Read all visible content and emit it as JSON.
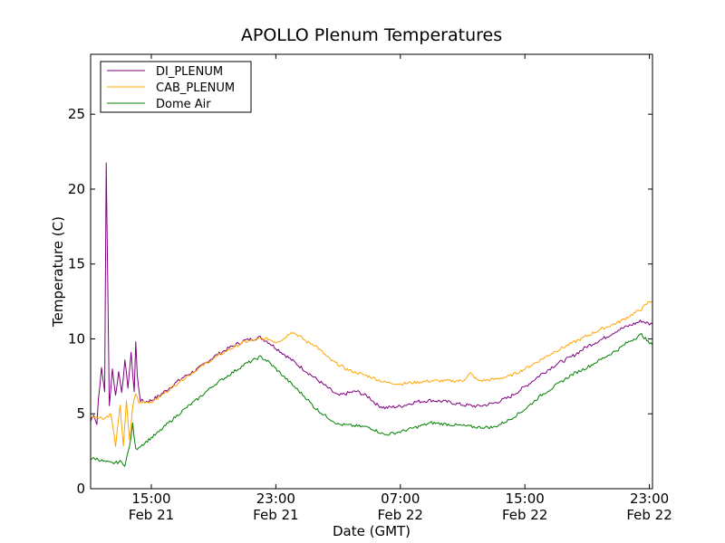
{
  "chart_data": {
    "type": "line",
    "title": "APOLLO Plenum Temperatures",
    "xlabel": "Date (GMT)",
    "ylabel": "Temperature (C)",
    "xlim": [
      11.1,
      47.2
    ],
    "ylim": [
      0,
      29
    ],
    "x_unit": "hours since Feb 21 00:00 GMT",
    "yticks": [
      0,
      5,
      10,
      15,
      20,
      25
    ],
    "xticks": [
      {
        "value": 15,
        "time": "15:00",
        "date": "Feb 21"
      },
      {
        "value": 23,
        "time": "23:00",
        "date": "Feb 21"
      },
      {
        "value": 31,
        "time": "07:00",
        "date": "Feb 22"
      },
      {
        "value": 39,
        "time": "15:00",
        "date": "Feb 22"
      },
      {
        "value": 47,
        "time": "23:00",
        "date": "Feb 22"
      }
    ],
    "legend": {
      "position": "top-left"
    },
    "series": [
      {
        "name": "DI_PLENUM",
        "color": "#800080",
        "noise": 0.12,
        "x": [
          11.1,
          11.3,
          11.5,
          11.6,
          11.8,
          12.0,
          12.1,
          12.3,
          12.5,
          12.7,
          12.9,
          13.1,
          13.3,
          13.5,
          13.7,
          13.9,
          14.0,
          14.1,
          14.3,
          14.6,
          15.0,
          15.5,
          16.0,
          17.0,
          18.0,
          19.0,
          20.0,
          21.0,
          22.0,
          22.5,
          23.0,
          23.5,
          24.0,
          25.0,
          26.0,
          27.0,
          27.7,
          28.2,
          29.0,
          29.5,
          30.0,
          31.0,
          32.0,
          33.0,
          34.0,
          35.0,
          36.0,
          37.0,
          38.0,
          39.0,
          40.0,
          41.0,
          42.0,
          43.0,
          44.0,
          45.0,
          46.0,
          46.5,
          47.0,
          47.2
        ],
        "y": [
          4.5,
          5.0,
          4.3,
          6.0,
          8.0,
          6.5,
          21.8,
          5.5,
          8.0,
          6.2,
          7.8,
          6.5,
          8.5,
          6.8,
          9.0,
          6.5,
          9.8,
          7.5,
          5.9,
          5.8,
          5.9,
          6.2,
          6.6,
          7.4,
          8.0,
          8.8,
          9.4,
          9.9,
          10.1,
          9.8,
          9.4,
          9.0,
          8.6,
          7.8,
          7.0,
          6.2,
          6.4,
          6.5,
          6.1,
          5.6,
          5.4,
          5.5,
          5.8,
          5.9,
          5.8,
          5.6,
          5.5,
          5.7,
          6.1,
          6.8,
          7.6,
          8.3,
          8.8,
          9.5,
          10.0,
          10.6,
          11.0,
          11.2,
          11.0,
          11.0
        ]
      },
      {
        "name": "CAB_PLENUM",
        "color": "#FFA500",
        "noise": 0.1,
        "x": [
          11.1,
          11.5,
          12.0,
          12.4,
          12.7,
          13.0,
          13.2,
          13.4,
          13.6,
          13.8,
          14.0,
          14.2,
          14.5,
          15.0,
          15.5,
          16.0,
          17.0,
          18.0,
          19.0,
          20.0,
          21.0,
          22.0,
          22.5,
          23.0,
          23.5,
          24.0,
          24.5,
          25.0,
          25.5,
          26.0,
          26.5,
          27.0,
          27.5,
          28.0,
          29.0,
          30.0,
          31.0,
          32.0,
          33.0,
          34.0,
          35.0,
          35.5,
          36.0,
          37.0,
          38.0,
          39.0,
          40.0,
          41.0,
          42.0,
          43.0,
          44.0,
          45.0,
          46.0,
          46.5,
          47.0,
          47.2
        ],
        "y": [
          4.8,
          4.8,
          4.7,
          5.0,
          2.9,
          5.5,
          2.9,
          5.8,
          3.2,
          5.5,
          6.4,
          5.7,
          5.8,
          5.8,
          6.1,
          6.5,
          7.3,
          8.0,
          8.7,
          9.3,
          9.8,
          10.0,
          10.0,
          9.8,
          10.0,
          10.5,
          10.2,
          9.8,
          9.6,
          9.1,
          8.6,
          8.3,
          8.0,
          7.8,
          7.5,
          7.1,
          7.0,
          7.1,
          7.2,
          7.2,
          7.2,
          7.7,
          7.2,
          7.3,
          7.5,
          8.0,
          8.6,
          9.2,
          9.7,
          10.2,
          10.7,
          11.1,
          11.7,
          12.0,
          12.5,
          12.5
        ]
      },
      {
        "name": "Dome Air",
        "color": "#008000",
        "noise": 0.1,
        "x": [
          11.1,
          11.5,
          12.0,
          12.5,
          13.0,
          13.3,
          13.6,
          13.8,
          14.0,
          14.2,
          14.5,
          15.0,
          15.5,
          16.0,
          17.0,
          18.0,
          19.0,
          20.0,
          21.0,
          22.0,
          22.5,
          23.0,
          24.0,
          25.0,
          25.5,
          26.0,
          27.0,
          28.0,
          29.0,
          30.0,
          31.0,
          32.0,
          33.0,
          34.0,
          35.0,
          36.0,
          37.0,
          38.0,
          39.0,
          40.0,
          41.0,
          42.0,
          43.0,
          44.0,
          45.0,
          45.5,
          46.0,
          46.5,
          47.0,
          47.2
        ],
        "y": [
          2.0,
          2.0,
          1.8,
          1.7,
          1.8,
          1.6,
          2.8,
          4.3,
          2.6,
          2.8,
          3.0,
          3.4,
          3.8,
          4.3,
          5.2,
          6.0,
          6.9,
          7.6,
          8.3,
          8.8,
          8.5,
          8.0,
          7.0,
          6.0,
          5.4,
          5.0,
          4.3,
          4.2,
          4.1,
          3.6,
          3.8,
          4.1,
          4.4,
          4.3,
          4.2,
          4.1,
          4.1,
          4.6,
          5.3,
          6.2,
          6.9,
          7.6,
          8.1,
          8.7,
          9.3,
          9.7,
          10.0,
          10.3,
          9.7,
          9.6
        ]
      }
    ]
  }
}
